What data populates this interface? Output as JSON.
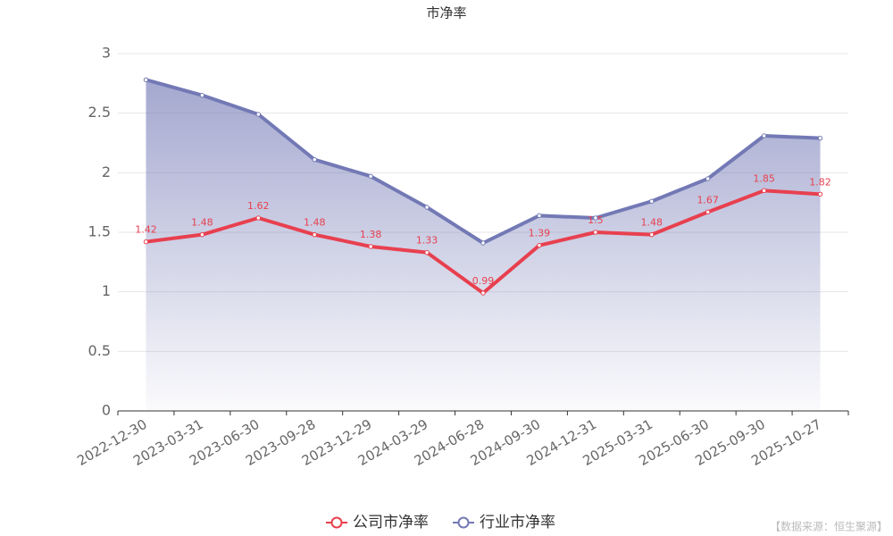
{
  "chart_data": {
    "type": "line",
    "title": "市净率",
    "categories": [
      "2022-12-30",
      "2023-03-31",
      "2023-06-30",
      "2023-09-28",
      "2023-12-29",
      "2024-03-29",
      "2024-06-28",
      "2024-09-30",
      "2024-12-31",
      "2025-03-31",
      "2025-06-30",
      "2025-09-30",
      "2025-10-27"
    ],
    "series": [
      {
        "name": "公司市净率",
        "color": "#e8404f",
        "values": [
          1.42,
          1.48,
          1.62,
          1.48,
          1.38,
          1.33,
          0.99,
          1.39,
          1.5,
          1.48,
          1.67,
          1.85,
          1.82
        ]
      },
      {
        "name": "行业市净率",
        "color": "#7379b5",
        "values": [
          2.78,
          2.65,
          2.49,
          2.11,
          1.97,
          1.71,
          1.41,
          1.64,
          1.62,
          1.76,
          1.95,
          2.31,
          2.29
        ]
      }
    ],
    "ylim": [
      0,
      3
    ],
    "yticks": [
      0,
      0.5,
      1,
      1.5,
      2,
      2.5,
      3
    ],
    "grid": true,
    "source": "【数据来源：恒生聚源】"
  }
}
